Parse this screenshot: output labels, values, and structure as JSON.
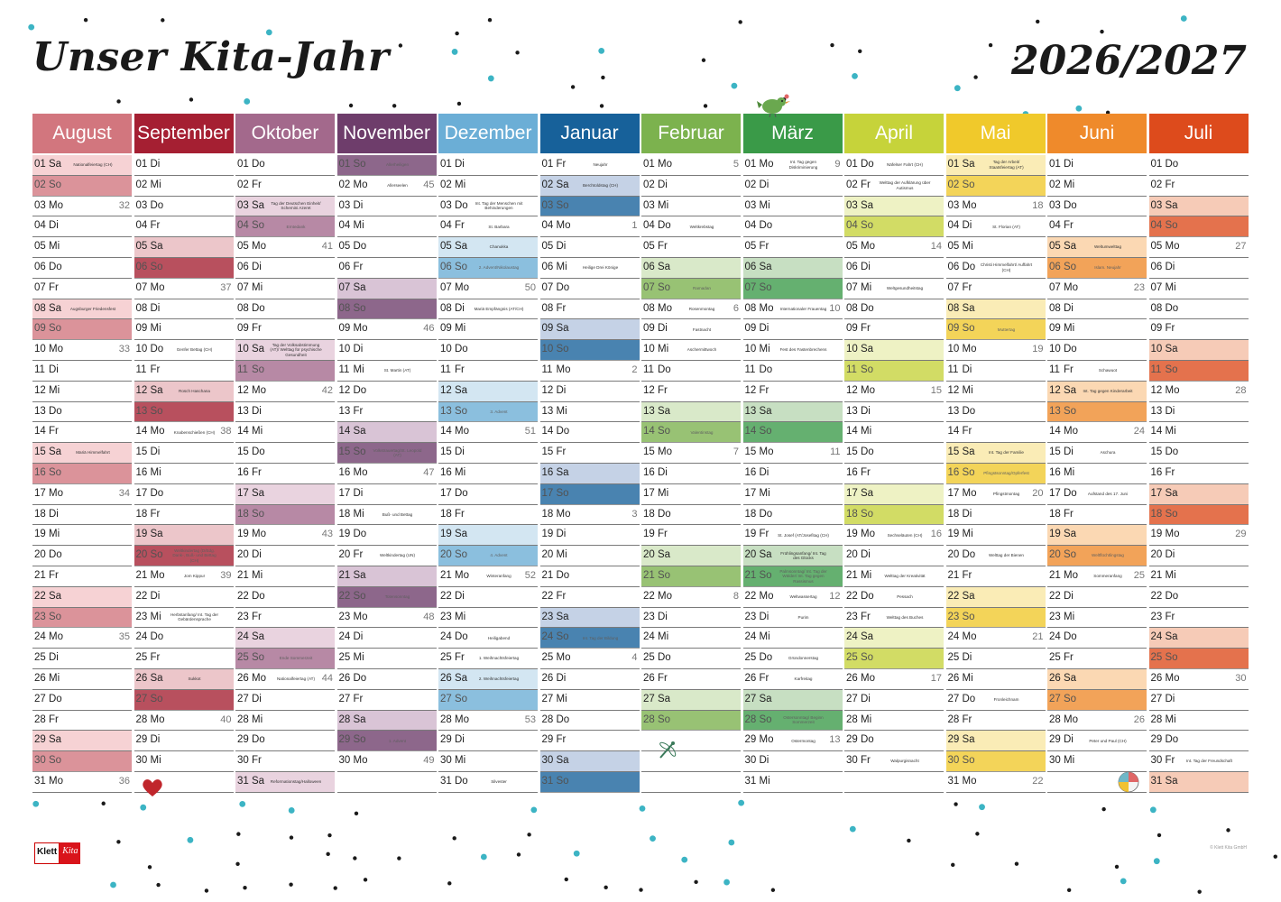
{
  "title": "Unser Kita-Jahr",
  "year": "2026/2027",
  "brand": {
    "logo_left": "Klett",
    "logo_right": "Kita",
    "copyright": "© Klett Kita GmbH"
  },
  "icons": [
    "bird-icon",
    "heart-icon",
    "dragonfly-icon",
    "beach-ball-icon",
    "dots-pattern"
  ],
  "months": [
    {
      "name": "August",
      "color": "#d2767e",
      "tint": "#f6d2d4",
      "start_wd": 5,
      "days": 31,
      "notes": {
        "1": "Nationalfeiertag (CH)",
        "8": "Augsburger Friedensfest",
        "15": "Mariä Himmelfahrt"
      },
      "weeks": {
        "3": "32",
        "10": "33",
        "17": "34",
        "24": "35",
        "31": "36"
      }
    },
    {
      "name": "September",
      "color": "#a51f32",
      "tint": "#ecc6ca",
      "start_wd": 1,
      "days": 30,
      "notes": {
        "10": "Genfer Bettag (CH)",
        "12": "Rosch Haschana",
        "14": "Knabenschießen (CH)",
        "20": "Weltkindertag (D/Edg. Dank-, Buß- und Bettag (CH)",
        "21": "Jom Kippur",
        "23": "Herbstanfang/ Int. Tag der Gebärdensprache",
        "26": "Sukkot"
      },
      "weeks": {
        "7": "37",
        "14": "38",
        "21": "39",
        "28": "40"
      }
    },
    {
      "name": "Oktober",
      "color": "#a3698c",
      "tint": "#e9d3df",
      "start_wd": 3,
      "days": 31,
      "notes": {
        "3": "Tag der Deutschen Einheit/ Schemini Azeret",
        "4": "Erntedank",
        "10": "Tag der Volksabstimmung (AT)/ Welttag für psychische Gesundheit",
        "25": "Ende Sommerzeit",
        "26": "Nationalfeiertag (AT)",
        "31": "Reformationstag/Halloween"
      },
      "weeks": {
        "5": "41",
        "12": "42",
        "19": "43",
        "26": "44"
      }
    },
    {
      "name": "November",
      "color": "#6e3d6b",
      "tint": "#d9c4d6",
      "start_wd": 6,
      "days": 30,
      "notes": {
        "1": "Allerheiligen",
        "2": "Allerseelen",
        "11": "St. Martin (AT)",
        "15": "Volkstrauertag/St. Leopold (AT)",
        "18": "Buß- und Bettag",
        "20": "Weltkindertag (UN)",
        "22": "Totensonntag",
        "29": "1. Advent"
      },
      "weeks": {
        "2": "45",
        "9": "46",
        "16": "47",
        "23": "48",
        "30": "49"
      }
    },
    {
      "name": "Dezember",
      "color": "#6baed6",
      "tint": "#d3e6f2",
      "start_wd": 1,
      "days": 31,
      "notes": {
        "3": "Int. Tag der Menschen mit Behinderungen",
        "4": "St. Barbara",
        "5": "Chanukka",
        "6": "2. Advent/Nikolaustag",
        "8": "Mariä Empfängnis (AT/CH)",
        "13": "3. Advent",
        "20": "4. Advent",
        "21": "Winteranfang",
        "24": "Heiligabend",
        "25": "1. Weihnachtsfeiertag",
        "26": "2. Weihnachtsfeiertag",
        "31": "Silvester"
      },
      "weeks": {
        "7": "50",
        "14": "51",
        "21": "52",
        "28": "53"
      }
    },
    {
      "name": "Januar",
      "color": "#17619a",
      "tint": "#c5d2e6",
      "start_wd": 4,
      "days": 31,
      "notes": {
        "1": "Neujahr",
        "2": "Berchtoldstag (CH)",
        "6": "Heilige Drei Könige",
        "24": "Int. Tag der Bildung"
      },
      "weeks": {
        "4": "1",
        "11": "2",
        "18": "3",
        "25": "4"
      }
    },
    {
      "name": "Februar",
      "color": "#7cb24e",
      "tint": "#d9e9c9",
      "start_wd": 0,
      "days": 28,
      "notes": {
        "4": "Weltkrebstag",
        "7": "Ramadan",
        "8": "Rosenmontag",
        "9": "Fastnacht",
        "10": "Aschermittwoch",
        "14": "Valentinstag"
      },
      "weeks": {
        "1": "5",
        "8": "6",
        "15": "7",
        "22": "8"
      }
    },
    {
      "name": "März",
      "color": "#3a9a48",
      "tint": "#c7dfc2",
      "start_wd": 0,
      "days": 31,
      "notes": {
        "1": "Int. Tag gegen Diskriminierung",
        "8": "Internationaler Frauentag",
        "10": "Fest des Fastenbrechens",
        "19": "St. Josef (AT/Josefitag (CH)",
        "20": "Frühlingsanfang/ Int. Tag des Glücks",
        "21": "Palmsonntag/ Int. Tag der Wälder/ Int. Tag gegen Rassismus",
        "22": "Weltwassertag",
        "23": "Purim",
        "25": "Gründonnerstag",
        "26": "Karfreitag",
        "28": "Ostersonntag/ Beginn Sommerzeit",
        "29": "Ostermontag"
      },
      "weeks": {
        "1": "9",
        "8": "10",
        "15": "11",
        "22": "12",
        "29": "13"
      }
    },
    {
      "name": "April",
      "color": "#c6d33a",
      "tint": "#eef2c4",
      "start_wd": 3,
      "days": 30,
      "notes": {
        "1": "Näfelser Fahrt (CH)",
        "2": "Welttag der Aufklärung über Autismus",
        "7": "Weltgesundheitstag",
        "19": "Sechseläuten (CH)",
        "21": "Welttag der Kreativität",
        "22": "Pessach",
        "23": "Welttag des Buches",
        "30": "Walpurgisnacht"
      },
      "weeks": {
        "5": "14",
        "12": "15",
        "19": "16",
        "26": "17"
      }
    },
    {
      "name": "Mai",
      "color": "#f0c92b",
      "tint": "#faecb6",
      "start_wd": 5,
      "days": 31,
      "notes": {
        "1": "Tag der Arbeit/ Staatsfeiertag (AT)",
        "4": "St. Florian (AT)",
        "6": "Christi Himmelfahrt/ Auffahrt (CH)",
        "9": "Muttertag",
        "15": "Int. Tag der Familie",
        "16": "Pfingstsonntag/Opferfest",
        "17": "Pfingstmontag",
        "20": "Welttag der Bienen",
        "27": "Fronleichnam"
      },
      "weeks": {
        "3": "18",
        "10": "19",
        "17": "20",
        "24": "21",
        "31": "22"
      }
    },
    {
      "name": "Juni",
      "color": "#ef8a2b",
      "tint": "#fbd8b3",
      "start_wd": 1,
      "days": 30,
      "notes": {
        "5": "Weltumwelttag",
        "6": "Islam. Neujahr",
        "11": "Schawuot",
        "12": "Int. Tag gegen Kinderarbeit",
        "15": "Aschura",
        "17": "Aufstand des 17. Juni",
        "20": "Weltflüchtlingstag",
        "21": "Sommeranfang",
        "29": "Peter und Paul (CH)"
      },
      "weeks": {
        "7": "23",
        "14": "24",
        "21": "25",
        "28": "26"
      }
    },
    {
      "name": "Juli",
      "color": "#dd4b1c",
      "tint": "#f6cbb7",
      "start_wd": 3,
      "days": 31,
      "notes": {
        "30": "Int. Tag der Freundschaft"
      },
      "weeks": {
        "5": "27",
        "12": "28",
        "19": "29",
        "26": "30"
      }
    }
  ],
  "weekday_abbr": [
    "Mo",
    "Di",
    "Mi",
    "Do",
    "Fr",
    "Sa",
    "So"
  ]
}
